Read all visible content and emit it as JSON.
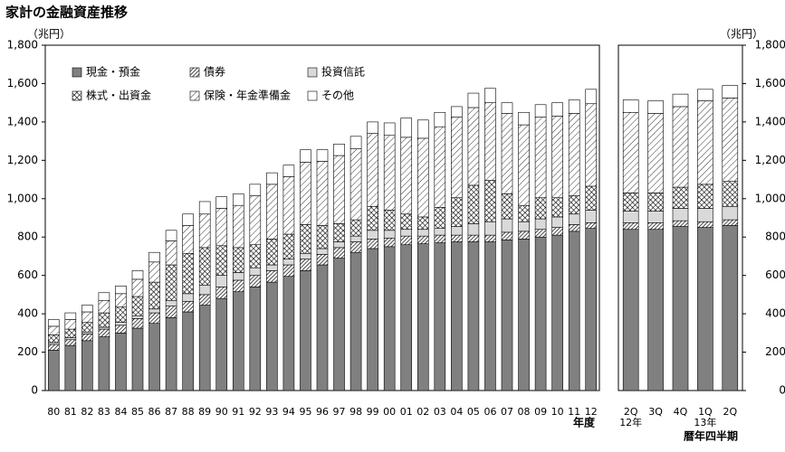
{
  "chart_data": [
    {
      "type": "stacked-bar",
      "title": "家計の金融資産推移",
      "y_label": "（兆円）",
      "x_label": "年度",
      "legend": "top-left",
      "categories": [
        "80",
        "81",
        "82",
        "83",
        "84",
        "85",
        "86",
        "87",
        "88",
        "89",
        "90",
        "91",
        "92",
        "93",
        "94",
        "95",
        "96",
        "97",
        "98",
        "99",
        "00",
        "01",
        "02",
        "03",
        "04",
        "05",
        "06",
        "07",
        "08",
        "09",
        "10",
        "11",
        "12"
      ],
      "ylim": [
        0,
        1800
      ],
      "yticks": [
        0,
        200,
        400,
        600,
        800,
        {
          "value": 1000,
          "label": "1,000"
        },
        {
          "value": 1200,
          "label": "1,200"
        },
        {
          "value": 1400,
          "label": "1,400"
        },
        {
          "value": 1600,
          "label": "1,600"
        },
        {
          "value": 1800,
          "label": "1,800"
        }
      ],
      "series": [
        {
          "name": "現金・預金",
          "color": "#808080",
          "pattern": "solid",
          "values": [
            210,
            235,
            260,
            280,
            300,
            325,
            350,
            380,
            410,
            445,
            480,
            515,
            540,
            565,
            595,
            625,
            655,
            690,
            720,
            740,
            750,
            760,
            765,
            770,
            775,
            775,
            775,
            785,
            790,
            800,
            810,
            830,
            845
          ]
        },
        {
          "name": "債券",
          "color": "#000000",
          "pattern": "dense",
          "values": [
            30,
            30,
            35,
            40,
            40,
            50,
            55,
            60,
            55,
            55,
            60,
            60,
            60,
            60,
            60,
            60,
            55,
            55,
            55,
            50,
            45,
            45,
            40,
            40,
            35,
            35,
            35,
            40,
            40,
            40,
            40,
            35,
            30
          ]
        },
        {
          "name": "投資信託",
          "color": "#d9d9d9",
          "pattern": "solid",
          "values": [
            10,
            10,
            10,
            10,
            15,
            15,
            20,
            30,
            40,
            50,
            60,
            40,
            40,
            30,
            30,
            30,
            30,
            30,
            30,
            45,
            40,
            35,
            35,
            35,
            45,
            60,
            70,
            70,
            50,
            55,
            55,
            55,
            65
          ]
        },
        {
          "name": "株式・出資金",
          "color": "#000000",
          "pattern": "cross",
          "values": [
            40,
            45,
            50,
            75,
            80,
            100,
            140,
            185,
            210,
            195,
            155,
            130,
            120,
            135,
            130,
            150,
            120,
            95,
            85,
            125,
            105,
            80,
            65,
            110,
            150,
            200,
            215,
            130,
            85,
            110,
            100,
            95,
            125
          ]
        },
        {
          "name": "保険・年金準備金",
          "color": "#000000",
          "pattern": "diagonal",
          "values": [
            45,
            50,
            55,
            65,
            70,
            90,
            105,
            125,
            145,
            175,
            195,
            220,
            255,
            285,
            300,
            325,
            335,
            355,
            370,
            380,
            390,
            400,
            410,
            420,
            420,
            405,
            405,
            420,
            420,
            420,
            425,
            430,
            430
          ]
        },
        {
          "name": "その他",
          "color": "#ffffff",
          "pattern": "solid",
          "values": [
            35,
            35,
            35,
            40,
            40,
            45,
            50,
            55,
            60,
            65,
            60,
            60,
            60,
            60,
            60,
            65,
            60,
            60,
            65,
            60,
            65,
            100,
            95,
            75,
            55,
            75,
            75,
            55,
            65,
            65,
            70,
            70,
            75
          ]
        }
      ]
    },
    {
      "type": "stacked-bar",
      "y_label": "（兆円）",
      "x_label": "暦年四半期",
      "categories": [
        "2Q",
        "3Q",
        "4Q",
        "1Q",
        "2Q"
      ],
      "category_sublabels": [
        "12年",
        null,
        null,
        "13年",
        null
      ],
      "ylim": [
        0,
        1800
      ],
      "yticks": [
        0,
        200,
        400,
        600,
        800,
        {
          "value": 1000,
          "label": "1,000"
        },
        {
          "value": 1200,
          "label": "1,200"
        },
        {
          "value": 1400,
          "label": "1,400"
        },
        {
          "value": 1600,
          "label": "1,600"
        },
        {
          "value": 1800,
          "label": "1,800"
        }
      ],
      "series": [
        {
          "values": [
            840,
            840,
            855,
            850,
            860
          ]
        },
        {
          "values": [
            35,
            35,
            30,
            30,
            30
          ]
        },
        {
          "values": [
            60,
            60,
            65,
            70,
            70
          ]
        },
        {
          "values": [
            95,
            95,
            110,
            125,
            130
          ]
        },
        {
          "values": [
            420,
            415,
            420,
            435,
            435
          ]
        },
        {
          "values": [
            65,
            65,
            65,
            60,
            65
          ]
        }
      ]
    }
  ]
}
